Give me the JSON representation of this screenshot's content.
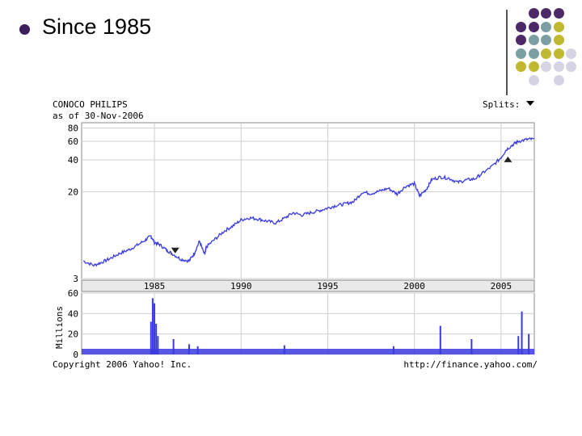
{
  "slide": {
    "title": "Since 1985",
    "decor_colors": {
      "purple": "#4b2a67",
      "teal": "#7c9fa5",
      "olive": "#c1b832",
      "lavender": "#d6d4e4",
      "bullet": "#3d1e5c"
    }
  },
  "chart_data": {
    "type": "line",
    "title": "CONOCO PHILIPS",
    "subtitle": "as of 30-Nov-2006",
    "splits_label": "Splits:",
    "price_axis": {
      "scale": "log",
      "ticks": [
        3,
        20,
        40,
        60,
        80
      ],
      "range": [
        3,
        90
      ]
    },
    "x_axis": {
      "ticks": [
        "1985",
        "1990",
        "1995",
        "2000",
        "2005"
      ],
      "range": [
        1980.8,
        2006.92
      ]
    },
    "price_series": {
      "x": [
        1980.9,
        1981.5,
        1982.0,
        1982.5,
        1983.0,
        1983.5,
        1984.0,
        1984.5,
        1984.8,
        1985.0,
        1985.3,
        1985.7,
        1986.0,
        1986.5,
        1987.0,
        1987.3,
        1987.6,
        1987.9,
        1988.0,
        1988.5,
        1989.0,
        1989.5,
        1990.0,
        1990.5,
        1991.0,
        1991.5,
        1992.0,
        1992.5,
        1993.0,
        1993.5,
        1994.0,
        1994.5,
        1995.0,
        1995.5,
        1996.0,
        1996.5,
        1997.0,
        1997.5,
        1998.0,
        1998.5,
        1999.0,
        1999.5,
        2000.0,
        2000.3,
        2000.7,
        2001.0,
        2001.5,
        2002.0,
        2002.5,
        2003.0,
        2003.5,
        2004.0,
        2004.5,
        2005.0,
        2005.3,
        2005.7,
        2006.0,
        2006.5,
        2006.9
      ],
      "y": [
        4.4,
        4.0,
        4.3,
        4.7,
        5.2,
        5.6,
        6.2,
        7.0,
        7.6,
        6.6,
        6.3,
        5.6,
        5.2,
        4.6,
        4.4,
        5.2,
        6.8,
        5.0,
        6.0,
        7.1,
        8.4,
        9.4,
        10.8,
        11.3,
        11.0,
        10.5,
        10.1,
        11.2,
        12.6,
        12.0,
        12.6,
        13.2,
        14.0,
        14.8,
        15.3,
        16.1,
        19.8,
        19.2,
        20.3,
        21.5,
        19.0,
        22.5,
        23.8,
        18.2,
        21.2,
        26.0,
        27.5,
        26.8,
        24.5,
        25.8,
        26.5,
        30.5,
        35.0,
        42.0,
        50.0,
        56.0,
        60.0,
        62.5,
        63.0
      ]
    },
    "split_markers": [
      {
        "x": 1986.2,
        "direction": "down"
      },
      {
        "x": 2005.4,
        "direction": "up"
      }
    ],
    "volume_axis": {
      "label": "Millions",
      "ticks": [
        0,
        20,
        40,
        60
      ],
      "range": [
        0,
        60
      ]
    },
    "volume_series": {
      "x": [
        1984.8,
        1984.9,
        1985.0,
        1985.1,
        1985.2,
        1986.1,
        1987.0,
        1987.5,
        1992.5,
        1998.8,
        2001.5,
        2003.3,
        2006.0,
        2006.2,
        2006.6
      ],
      "y": [
        32,
        55,
        50,
        30,
        18,
        15,
        10,
        8,
        9,
        8,
        28,
        15,
        18,
        42,
        20
      ]
    },
    "copyright": "Copyright 2006 Yahoo! Inc.",
    "source_url": "http://finance.yahoo.com/"
  }
}
